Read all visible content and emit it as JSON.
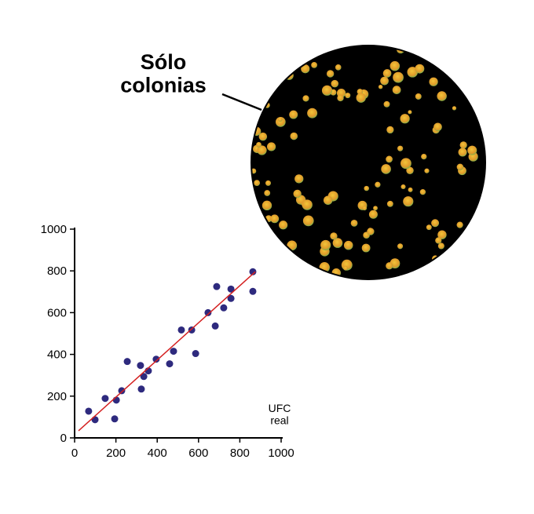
{
  "chart_data": {
    "type": "scatter",
    "annotation": "Sólo colonias",
    "x_label": "UFC real",
    "xlim": [
      0,
      1000
    ],
    "ylim": [
      0,
      1000
    ],
    "xticks": [
      0,
      200,
      400,
      600,
      800,
      1000
    ],
    "yticks": [
      0,
      200,
      400,
      600,
      800,
      1000
    ],
    "series": [
      {
        "color": "#2e2a7e",
        "x": [
          68,
          99,
          148,
          194,
          202,
          228,
          255,
          319,
          323,
          335,
          357,
          395,
          460,
          479,
          517,
          567,
          586,
          646,
          681,
          688,
          722,
          757,
          757,
          863,
          863
        ],
        "values": [
          128,
          87,
          189,
          91,
          181,
          226,
          366,
          347,
          234,
          294,
          321,
          377,
          355,
          415,
          517,
          517,
          404,
          600,
          536,
          725,
          623,
          713,
          668,
          702,
          796
        ]
      },
      {
        "type": "line",
        "color": "#d42020",
        "x": [
          19,
          875
        ],
        "values": [
          34,
          796
        ]
      }
    ]
  }
}
